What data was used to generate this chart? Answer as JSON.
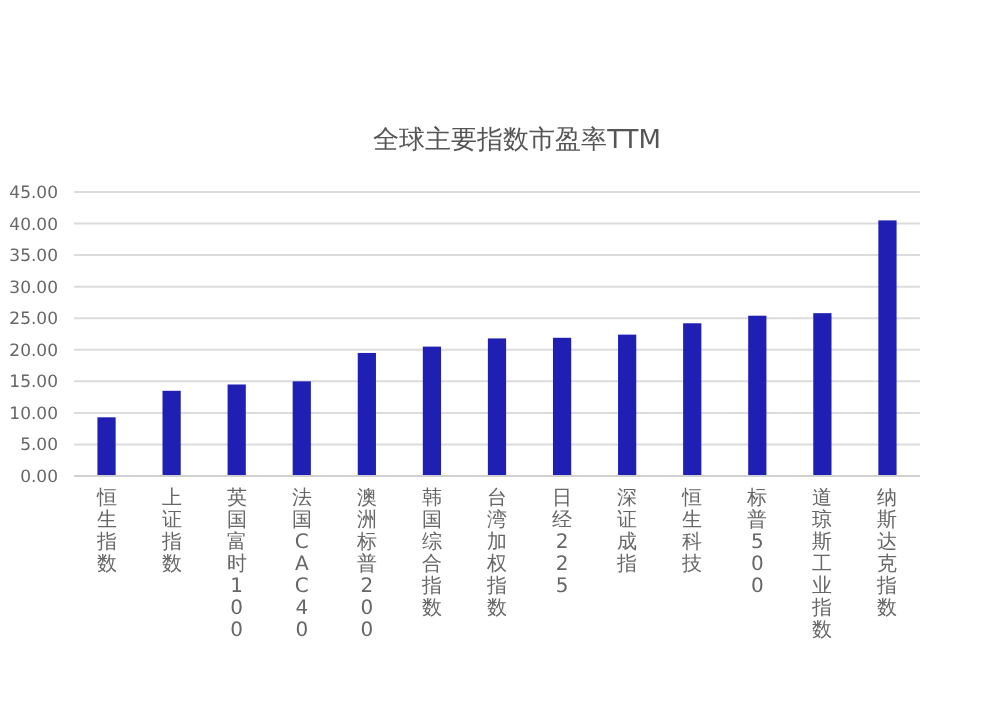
{
  "chart_data": {
    "type": "bar",
    "title": "全球主要指数市盈率TTM",
    "categories": [
      "恒生指数",
      "上证指数",
      "英国富时100",
      "法国CAC40",
      "澳洲标普200",
      "韩国综合指数",
      "台湾加权指数",
      "日经225",
      "深证成指",
      "恒生科技",
      "标普500",
      "道琼斯工业指数",
      "纳斯达克指数"
    ],
    "values": [
      9.3,
      13.5,
      14.5,
      15,
      19.5,
      20.5,
      21.8,
      21.9,
      22.4,
      24.2,
      25.4,
      25.8,
      40.5
    ],
    "color": "#1f1fb4",
    "ylim": [
      0,
      45
    ],
    "yticks": [
      {
        "value": 0,
        "label": "0.00"
      },
      {
        "value": 5,
        "label": "5.00"
      },
      {
        "value": 10,
        "label": "10.00"
      },
      {
        "value": 15,
        "label": "15.00"
      },
      {
        "value": 20,
        "label": "20.00"
      },
      {
        "value": 25,
        "label": "25.00"
      },
      {
        "value": 30,
        "label": "30.00"
      },
      {
        "value": 35,
        "label": "35.00"
      },
      {
        "value": 40,
        "label": "40.00"
      },
      {
        "value": 45,
        "label": "45.00"
      }
    ],
    "grid": "y"
  }
}
